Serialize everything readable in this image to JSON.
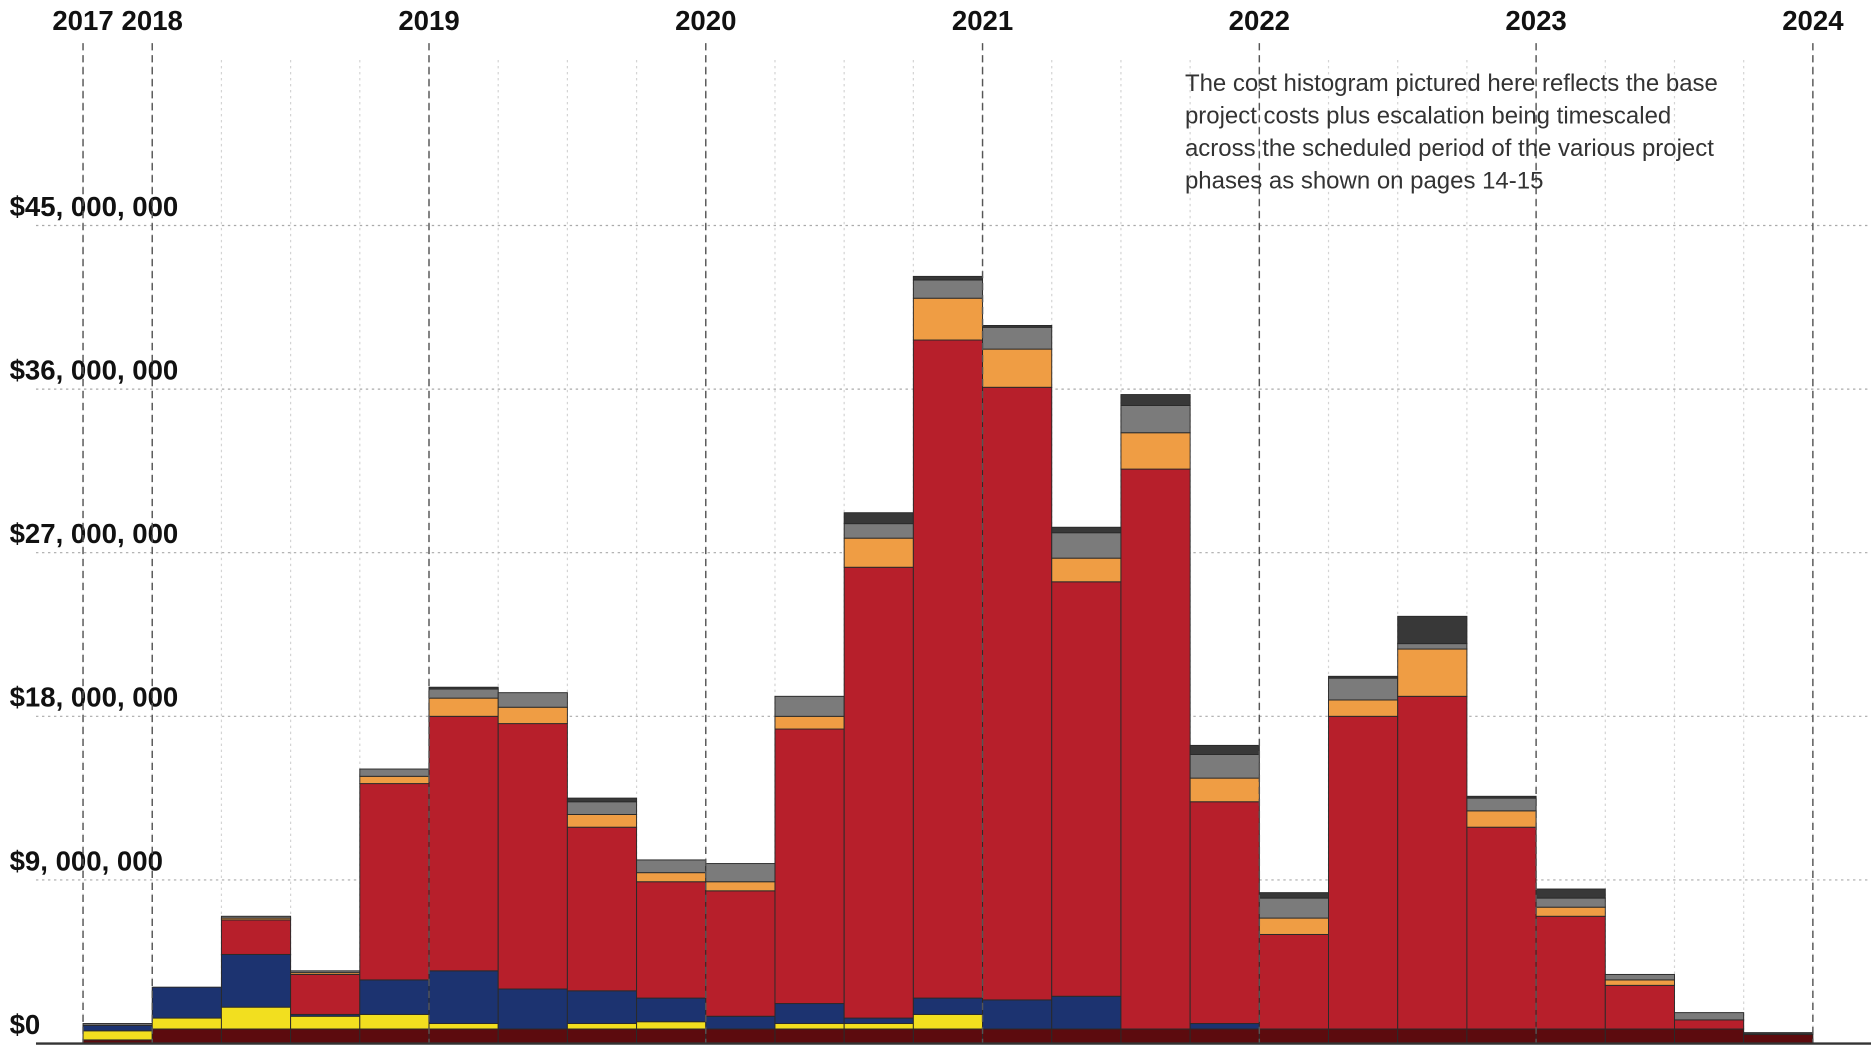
{
  "chart_data": {
    "type": "histogram",
    "annotation": [
      "The cost histogram pictured here reflects the base",
      "project costs plus escalation being timescaled",
      "across the scheduled period of the various project",
      "phases as shown on pages 14-15"
    ],
    "bins": [
      2017.75,
      2018,
      2018.25,
      2018.5,
      2018.75,
      2019,
      2019.25,
      2019.5,
      2019.75,
      2020,
      2020.25,
      2020.5,
      2020.75,
      2021,
      2021.25,
      2021.5,
      2021.75,
      2022,
      2022.25,
      2022.5,
      2022.75,
      2023,
      2023.25,
      2023.5,
      2023.75,
      2024
    ],
    "series": [
      {
        "color": "#5c0b0e",
        "values": [
          200000,
          800000,
          800000,
          800000,
          800000,
          800000,
          800000,
          800000,
          800000,
          800000,
          800000,
          800000,
          800000,
          800000,
          800000,
          800000,
          800000,
          800000,
          800000,
          800000,
          800000,
          800000,
          800000,
          800000,
          500000
        ]
      },
      {
        "color": "#f2df1f",
        "values": [
          500000,
          600000,
          1200000,
          700000,
          800000,
          300000,
          0,
          300000,
          400000,
          0,
          300000,
          300000,
          800000,
          0,
          0,
          0,
          0,
          0,
          0,
          0,
          0,
          0,
          0,
          0,
          0
        ]
      },
      {
        "color": "#1c3370",
        "values": [
          300000,
          1700000,
          2900000,
          100000,
          1900000,
          2900000,
          2200000,
          1800000,
          1300000,
          700000,
          1100000,
          300000,
          900000,
          1600000,
          1800000,
          0,
          300000,
          0,
          0,
          0,
          0,
          0,
          0,
          0,
          0
        ]
      },
      {
        "color": "#b71f2b",
        "values": [
          0,
          0,
          1900000,
          2200000,
          10800000,
          14000000,
          14600000,
          9000000,
          6400000,
          6900000,
          15100000,
          24800000,
          36200000,
          33700000,
          22800000,
          30800000,
          12200000,
          5200000,
          17200000,
          18300000,
          11100000,
          6200000,
          2400000,
          500000,
          0
        ]
      },
      {
        "color": "#ef9d44",
        "values": [
          0,
          0,
          100000,
          100000,
          400000,
          1000000,
          900000,
          700000,
          500000,
          500000,
          700000,
          1600000,
          2300000,
          2100000,
          1300000,
          2000000,
          1300000,
          900000,
          900000,
          2600000,
          900000,
          500000,
          300000,
          0,
          0
        ]
      },
      {
        "color": "#7b7b7b",
        "values": [
          100000,
          0,
          100000,
          100000,
          400000,
          500000,
          800000,
          700000,
          700000,
          1000000,
          1100000,
          800000,
          1000000,
          1200000,
          1400000,
          1500000,
          1300000,
          1100000,
          1200000,
          300000,
          700000,
          500000,
          300000,
          400000,
          0
        ]
      },
      {
        "color": "#383838",
        "values": [
          0,
          0,
          0,
          0,
          0,
          100000,
          0,
          200000,
          0,
          0,
          0,
          600000,
          200000,
          100000,
          300000,
          600000,
          500000,
          300000,
          100000,
          1500000,
          100000,
          500000,
          0,
          0,
          100000
        ]
      }
    ],
    "xlim": [
      2017.58,
      2024.21
    ],
    "xticks": [
      {
        "value": 2017.75,
        "label": "2017"
      },
      2018,
      2019,
      2020,
      2021,
      2022,
      2023,
      2024
    ],
    "ylim": [
      0,
      45000000
    ],
    "yticks": [
      {
        "value": 0,
        "label": "$0"
      },
      {
        "value": 9000000,
        "label": "$9, 000, 000"
      },
      {
        "value": 18000000,
        "label": "$18, 000, 000"
      },
      {
        "value": 27000000,
        "label": "$27, 000, 000"
      },
      {
        "value": 36000000,
        "label": "$36, 000, 000"
      },
      {
        "value": 45000000,
        "label": "$45, 000, 000"
      }
    ],
    "grid": true
  }
}
